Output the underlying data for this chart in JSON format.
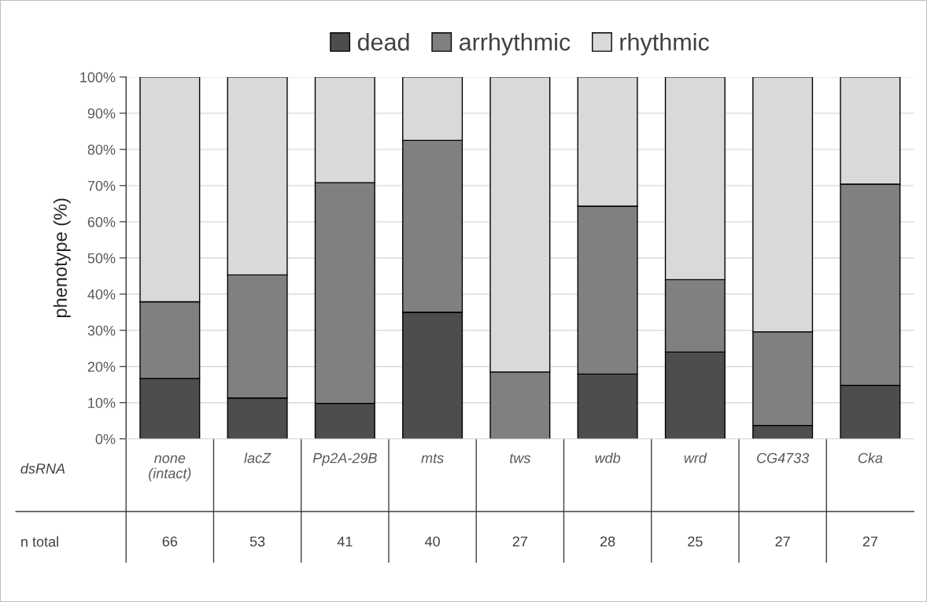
{
  "chart_data": {
    "type": "bar",
    "stacked": true,
    "categories": [
      "none\n(intact)",
      "lacZ",
      "Pp2A-29B",
      "mts",
      "tws",
      "wdb",
      "wrd",
      "CG4733",
      "Cka"
    ],
    "xlabel": "dsRNA",
    "ylabel": "phenotype (%)",
    "series": [
      {
        "name": "dead",
        "color": "#4d4d4d",
        "values": [
          16.7,
          11.3,
          9.8,
          35.0,
          0,
          17.9,
          24.0,
          3.7,
          14.8
        ]
      },
      {
        "name": "arrhythmic",
        "color": "#808080",
        "values": [
          21.2,
          34.0,
          61.0,
          47.5,
          18.5,
          46.4,
          20.0,
          25.9,
          55.6
        ]
      },
      {
        "name": "rhythmic",
        "color": "#d9d9d9",
        "values": [
          62.1,
          54.7,
          29.2,
          17.5,
          81.5,
          35.7,
          56.0,
          70.4,
          29.6
        ]
      }
    ],
    "ylim": [
      0,
      100
    ],
    "yticks": [
      {
        "value": 0,
        "label": "0%"
      },
      {
        "value": 10,
        "label": "10%"
      },
      {
        "value": 20,
        "label": "20%"
      },
      {
        "value": 30,
        "label": "30%"
      },
      {
        "value": 40,
        "label": "40%"
      },
      {
        "value": 50,
        "label": "50%"
      },
      {
        "value": 60,
        "label": "60%"
      },
      {
        "value": 70,
        "label": "70%"
      },
      {
        "value": 80,
        "label": "80%"
      },
      {
        "value": 90,
        "label": "90%"
      },
      {
        "value": 100,
        "label": "100%"
      }
    ],
    "grid": "y",
    "legend": "top",
    "annotations": [
      "n total",
      "66",
      "53",
      "41",
      "40",
      "27",
      "28",
      "25",
      "27",
      "27"
    ]
  }
}
